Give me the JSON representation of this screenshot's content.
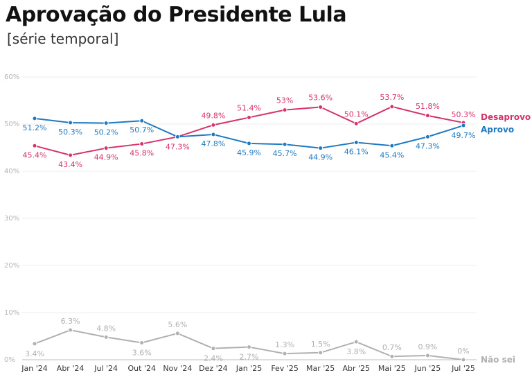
{
  "header": {
    "title": "Aprovação do Presidente Lula",
    "subtitle": "[série temporal]"
  },
  "chart_data": {
    "type": "line",
    "title": "Aprovação do Presidente Lula",
    "subtitle": "[série temporal]",
    "xlabel": "",
    "ylabel": "",
    "ylim": [
      0,
      60
    ],
    "yticks": [
      0,
      10,
      20,
      30,
      40,
      50,
      60
    ],
    "ytick_labels": [
      "0%",
      "10%",
      "20%",
      "30%",
      "40%",
      "50%",
      "60%"
    ],
    "grid": true,
    "categories": [
      "Jan '24",
      "Abr '24",
      "Jul '24",
      "Out '24",
      "Nov '24",
      "Dez '24",
      "Jan '25",
      "Fev '25",
      "Mar '25",
      "Abr '25",
      "Mai '25",
      "Jun '25",
      "Jul '25"
    ],
    "series": [
      {
        "name": "Desaprovo",
        "color": "#d6336c",
        "values": [
          45.4,
          43.4,
          44.9,
          45.8,
          47.3,
          49.8,
          51.4,
          53,
          53.6,
          50.1,
          53.7,
          51.8,
          50.3
        ],
        "labels": [
          "45.4%",
          "43.4%",
          "44.9%",
          "45.8%",
          "47.3%",
          "49.8%",
          "51.4%",
          "53%",
          "53.6%",
          "50.1%",
          "53.7%",
          "51.8%",
          "50.3%"
        ]
      },
      {
        "name": "Aprovo",
        "color": "#1f7ac2",
        "values": [
          51.2,
          50.3,
          50.2,
          50.7,
          47.3,
          47.8,
          45.9,
          45.7,
          44.9,
          46.1,
          45.4,
          47.3,
          49.7
        ],
        "labels": [
          "51.2%",
          "50.3%",
          "50.2%",
          "50.7%",
          "",
          "47.8%",
          "45.9%",
          "45.7%",
          "44.9%",
          "46.1%",
          "45.4%",
          "47.3%",
          "49.7%"
        ]
      },
      {
        "name": "Não sei",
        "color": "#b0b0b0",
        "values": [
          3.4,
          6.3,
          4.8,
          3.6,
          5.6,
          2.4,
          2.7,
          1.3,
          1.5,
          3.8,
          0.7,
          0.9,
          0
        ],
        "labels": [
          "3.4%",
          "6.3%",
          "4.8%",
          "3.6%",
          "5.6%",
          "2.4%",
          "2.7%",
          "1.3%",
          "1.5%",
          "3.8%",
          "0.7%",
          "0.9%",
          "0%"
        ]
      }
    ]
  }
}
